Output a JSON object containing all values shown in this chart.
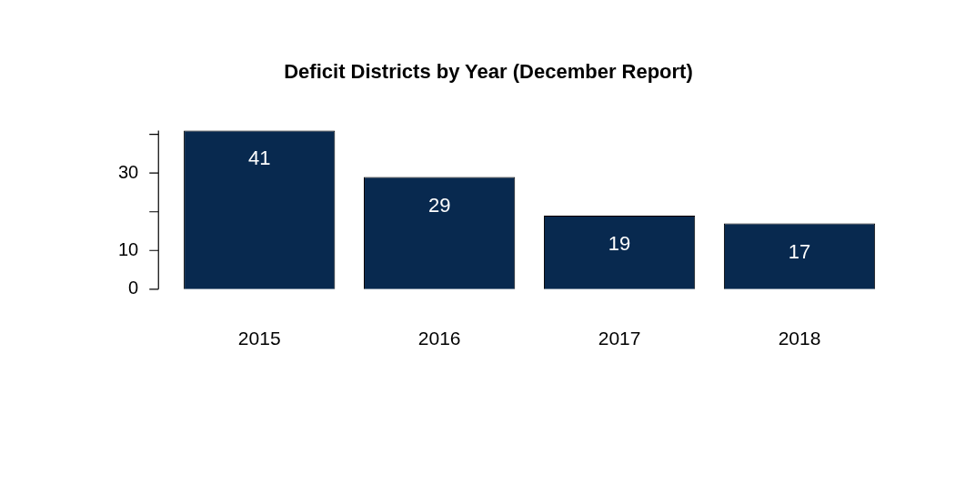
{
  "chart_data": {
    "type": "bar",
    "title": "Deficit Districts by Year (December Report)",
    "categories": [
      "2015",
      "2016",
      "2017",
      "2018"
    ],
    "values": [
      41,
      29,
      19,
      17
    ],
    "color": "#08294f",
    "ylim": [
      0,
      41
    ],
    "yticks": [
      0,
      10,
      {
        "value": 20,
        "label": null
      },
      30,
      {
        "value": 40,
        "label": null
      }
    ],
    "data_labels": true,
    "grid": false,
    "legend": false
  }
}
